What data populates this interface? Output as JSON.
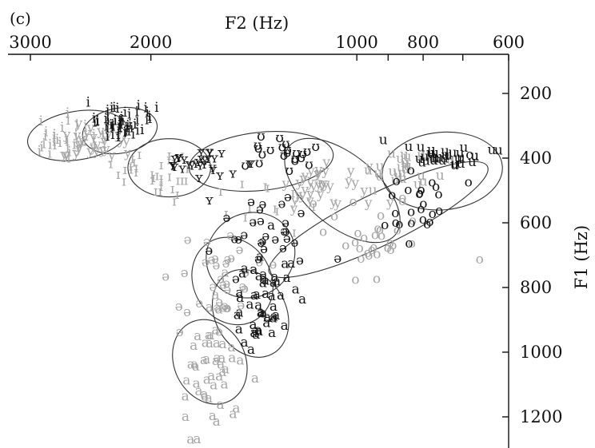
{
  "chart_data": {
    "type": "scatter",
    "panel_label": "(c)",
    "xlabel": "F2 (Hz)",
    "ylabel": "F1 (Hz)",
    "x_axis_position": "top",
    "y_axis_position": "right",
    "x_scale": "log",
    "x_reversed": true,
    "y_reversed": true,
    "xlim": [
      3150,
      600
    ],
    "ylim": [
      50,
      1290
    ],
    "x_ticks": [
      3000,
      2000,
      1000,
      800,
      600
    ],
    "x_tick_labels": [
      "3000",
      "2000",
      "1000",
      "800",
      "600"
    ],
    "x_minor_ticks": [
      900,
      700
    ],
    "y_ticks": [
      200,
      400,
      600,
      800,
      1000,
      1200
    ],
    "y_tick_labels": [
      "200",
      "400",
      "600",
      "800",
      "1000",
      "1200"
    ],
    "grid": false,
    "colors": {
      "gray_speaker": "#a6a6a6",
      "black_speaker": "#141414",
      "ellipse": "#333333"
    },
    "clusters": [
      {
        "label": "i",
        "color": "gray",
        "n": 32,
        "f2": 2700,
        "f1": 340,
        "sf2": 170,
        "sf1": 30
      },
      {
        "label": "y",
        "color": "gray",
        "n": 30,
        "f2": 2450,
        "f1": 350,
        "sf2": 140,
        "sf1": 28
      },
      {
        "label": "i",
        "color": "black",
        "n": 55,
        "f2": 2200,
        "f1": 285,
        "sf2": 120,
        "sf1": 22
      },
      {
        "label": "ɪ",
        "color": "gray",
        "n": 34,
        "f2": 1950,
        "f1": 440,
        "sf2": 160,
        "sf1": 38
      },
      {
        "label": "ʏ",
        "color": "black",
        "n": 30,
        "f2": 1700,
        "f1": 420,
        "sf2": 130,
        "sf1": 34
      },
      {
        "label": "ʊ",
        "color": "black",
        "n": 22,
        "f2": 1280,
        "f1": 380,
        "sf2": 110,
        "sf1": 28
      },
      {
        "label": "ɪ",
        "color": "gray",
        "n": 14,
        "f2": 1400,
        "f1": 540,
        "sf2": 140,
        "sf1": 42
      },
      {
        "label": "y",
        "color": "gray",
        "n": 34,
        "f2": 1100,
        "f1": 490,
        "sf2": 90,
        "sf1": 45
      },
      {
        "label": "u",
        "color": "gray",
        "n": 28,
        "f2": 860,
        "f1": 440,
        "sf2": 60,
        "sf1": 40
      },
      {
        "label": "u",
        "color": "black",
        "n": 30,
        "f2": 740,
        "f1": 390,
        "sf2": 45,
        "sf1": 15
      },
      {
        "label": "o",
        "color": "black",
        "n": 26,
        "f2": 820,
        "f1": 530,
        "sf2": 60,
        "sf1": 55
      },
      {
        "label": "o",
        "color": "gray",
        "n": 32,
        "f2": 940,
        "f1": 650,
        "sf2": 80,
        "sf1": 55
      },
      {
        "label": "ə",
        "color": "black",
        "n": 28,
        "f2": 1380,
        "f1": 640,
        "sf2": 110,
        "sf1": 70
      },
      {
        "label": "ə",
        "color": "gray",
        "n": 36,
        "f2": 1570,
        "f1": 790,
        "sf2": 120,
        "sf1": 85
      },
      {
        "label": "a",
        "color": "black",
        "n": 48,
        "f2": 1380,
        "f1": 850,
        "sf2": 80,
        "sf1": 60
      },
      {
        "label": "a",
        "color": "gray",
        "n": 46,
        "f2": 1640,
        "f1": 1060,
        "sf2": 80,
        "sf1": 90
      }
    ],
    "labeled_points": [
      {
        "label": "u",
        "color": "black",
        "f2": 915,
        "f1": 345
      },
      {
        "label": "u",
        "color": "black",
        "f2": 840,
        "f1": 365
      },
      {
        "label": "u",
        "color": "black",
        "f2": 635,
        "f1": 375
      },
      {
        "label": "a",
        "color": "gray",
        "f2": 1780,
        "f1": 1200
      },
      {
        "label": "a",
        "color": "gray",
        "f2": 1750,
        "f1": 1270
      },
      {
        "label": "a",
        "color": "black",
        "f2": 1460,
        "f1": 970
      },
      {
        "label": "ə",
        "color": "gray",
        "f2": 1530,
        "f1": 640
      }
    ],
    "ellipses": [
      {
        "cf2": 2560,
        "cf1": 330,
        "f2_extent": 430,
        "f1_extent": 75,
        "angle": -9
      },
      {
        "cf2": 2220,
        "cf1": 315,
        "f2_extent": 280,
        "f1_extent": 70,
        "angle": -10
      },
      {
        "cf2": 1880,
        "cf1": 430,
        "f2_extent": 260,
        "f1_extent": 90,
        "angle": 0
      },
      {
        "cf2": 1380,
        "cf1": 410,
        "f2_extent": 330,
        "f1_extent": 90,
        "angle": -6
      },
      {
        "cf2": 750,
        "cf1": 440,
        "f2_extent": 150,
        "f1_extent": 120,
        "angle": -5
      },
      {
        "cf2": 1050,
        "cf1": 500,
        "f2_extent": 240,
        "f1_extent": 110,
        "angle": 40
      },
      {
        "cf2": 930,
        "cf1": 590,
        "f2_extent": 360,
        "f1_extent": 80,
        "angle": -26
      },
      {
        "cf2": 1430,
        "cf1": 700,
        "f2_extent": 200,
        "f1_extent": 140,
        "angle": 58
      },
      {
        "cf2": 1520,
        "cf1": 780,
        "f2_extent": 230,
        "f1_extent": 120,
        "angle": 60
      },
      {
        "cf2": 1430,
        "cf1": 880,
        "f2_extent": 220,
        "f1_extent": 110,
        "angle": 62
      },
      {
        "cf2": 1640,
        "cf1": 1030,
        "f2_extent": 240,
        "f1_extent": 110,
        "angle": 64
      }
    ]
  }
}
